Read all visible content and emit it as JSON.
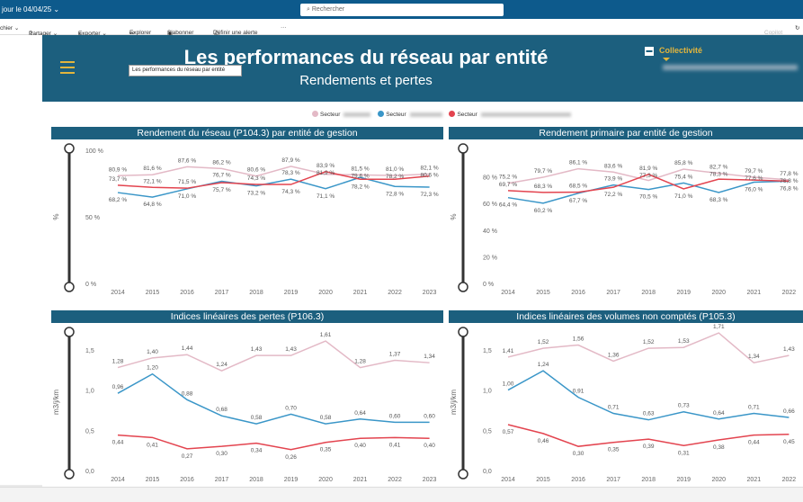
{
  "topbar": {
    "update_text": "jour le 04/04/25 ⌄",
    "search_placeholder": "Rechercher"
  },
  "toolbar": {
    "items": [
      "chier ⌄",
      "Partager ⌄",
      "Exporter ⌄",
      "Explorer",
      "S'abonner",
      "Définir une alerte",
      "···"
    ],
    "copilot": "Copilot"
  },
  "report": {
    "title": "Les performances du réseau par entité",
    "subtitle": "Rendements et pertes",
    "tooltip": "Les performances du réseau par entité",
    "collectivite_label": "Collectivité"
  },
  "legend": {
    "items": [
      {
        "label": "Secteur",
        "color": "#e3b9c6"
      },
      {
        "label": "Secteur",
        "color": "#3a96c8"
      },
      {
        "label": "Secteur",
        "color": "#e3444f"
      }
    ]
  },
  "chart_data": [
    {
      "type": "line",
      "title": "Rendement du réseau (P104.3) par entité de gestion",
      "ylabel": "%",
      "ylim": [
        0,
        100
      ],
      "yticks": [
        "0 %",
        "50 %",
        "100 %"
      ],
      "ytick_values": [
        0,
        50,
        100
      ],
      "categories": [
        "2014",
        "2015",
        "2016",
        "2017",
        "2018",
        "2019",
        "2020",
        "2021",
        "2022",
        "2023"
      ],
      "series": [
        {
          "name": "Secteur (rose)",
          "color": "#e3b9c6",
          "values": [
            80.9,
            81.6,
            87.6,
            86.2,
            80.6,
            87.9,
            81.9,
            81.5,
            81.0,
            82.1
          ],
          "labels": [
            "80,9 %",
            "81,6 %",
            "87,6 %",
            "86,2 %",
            "80,6 %",
            "87,9 %",
            "81,9 %",
            "81,5 %",
            "81,0 %",
            "82,1 %"
          ]
        },
        {
          "name": "Secteur (bleu)",
          "color": "#3a96c8",
          "values": [
            68.2,
            64.8,
            71.0,
            76.7,
            73.2,
            78.3,
            71.1,
            79.6,
            72.8,
            72.3
          ],
          "labels": [
            "68,2 %",
            "64,8 %",
            "71,0 %",
            "76,7 %",
            "73,2 %",
            "78,3 %",
            "71,1 %",
            "79,6 %",
            "72,8 %",
            "72,3 %"
          ]
        },
        {
          "name": "Secteur (rouge)",
          "color": "#e3444f",
          "values": [
            73.7,
            72.1,
            71.5,
            75.7,
            74.3,
            74.3,
            83.9,
            78.2,
            78.2,
            80.6
          ],
          "labels": [
            "73,7 %",
            "72,1 %",
            "71,5 %",
            "75,7 %",
            "74,3 %",
            "74,3 %",
            "83,9 %",
            "78,2 %",
            "78,2 %",
            "80,6 %"
          ]
        }
      ]
    },
    {
      "type": "line",
      "title": "Rendement primaire par entité de gestion",
      "ylabel": "%",
      "ylim": [
        0,
        100
      ],
      "yticks": [
        "0 %",
        "20 %",
        "40 %",
        "60 %",
        "80 %"
      ],
      "ytick_values": [
        0,
        20,
        40,
        60,
        80
      ],
      "categories": [
        "2014",
        "2015",
        "2016",
        "2017",
        "2018",
        "2019",
        "2020",
        "2021",
        "2022"
      ],
      "series": [
        {
          "name": "Secteur (rose)",
          "color": "#e3b9c6",
          "values": [
            75.2,
            79.7,
            86.1,
            83.6,
            77.3,
            85.8,
            82.7,
            79.7,
            77.8
          ],
          "labels": [
            "75,2 %",
            "79,7 %",
            "86,1 %",
            "83,6 %",
            "77,3 %",
            "85,8 %",
            "82,7 %",
            "79,7 %",
            "77,8 %"
          ]
        },
        {
          "name": "Secteur (bleu)",
          "color": "#3a96c8",
          "values": [
            64.4,
            60.2,
            67.7,
            73.9,
            70.5,
            75.4,
            68.3,
            76.0,
            76.8
          ],
          "labels": [
            "64,4 %",
            "60,2 %",
            "67,7 %",
            "73,9 %",
            "70,5 %",
            "75,4 %",
            "68,3 %",
            "76,0 %",
            "76,8 %"
          ]
        },
        {
          "name": "Secteur (rouge)",
          "color": "#e3444f",
          "values": [
            69.7,
            68.3,
            68.5,
            72.2,
            81.9,
            71.0,
            78.3,
            77.6,
            76.8
          ],
          "labels": [
            "69,7 %",
            "68,3 %",
            "68,5 %",
            "72,2 %",
            "81,9 %",
            "71,0 %",
            "78,3 %",
            "77,6 %",
            "76,8 %"
          ]
        }
      ]
    },
    {
      "type": "line",
      "title": "Indices linéaires des pertes (P106.3)",
      "ylabel": "m3/j/km",
      "ylim": [
        0,
        1.7
      ],
      "yticks": [
        "0,0",
        "0,5",
        "1,0",
        "1,5"
      ],
      "ytick_values": [
        0,
        0.5,
        1.0,
        1.5
      ],
      "categories": [
        "2014",
        "2015",
        "2016",
        "2017",
        "2018",
        "2019",
        "2020",
        "2021",
        "2022",
        "2023"
      ],
      "series": [
        {
          "name": "Secteur (rose)",
          "color": "#e3b9c6",
          "values": [
            1.28,
            1.4,
            1.44,
            1.24,
            1.43,
            1.43,
            1.61,
            1.28,
            1.37,
            1.34
          ],
          "labels": [
            "1,28",
            "1,40",
            "1,44",
            "1,24",
            "1,43",
            "1,43",
            "1,61",
            "1,28",
            "1,37",
            "1,34"
          ]
        },
        {
          "name": "Secteur (bleu)",
          "color": "#3a96c8",
          "values": [
            0.96,
            1.2,
            0.88,
            0.68,
            0.58,
            0.7,
            0.58,
            0.64,
            0.6,
            0.6
          ],
          "labels": [
            "0,96",
            "1,20",
            "0,88",
            "0,68",
            "0,58",
            "0,70",
            "0,58",
            "0,64",
            "0,60",
            "0,60"
          ]
        },
        {
          "name": "Secteur (rouge)",
          "color": "#e3444f",
          "values": [
            0.44,
            0.41,
            0.27,
            0.3,
            0.34,
            0.26,
            0.35,
            0.4,
            0.41,
            0.4
          ],
          "labels": [
            "0,44",
            "0,41",
            "0,27",
            "0,30",
            "0,34",
            "0,26",
            "0,35",
            "0,40",
            "0,41",
            "0,40"
          ]
        }
      ]
    },
    {
      "type": "line",
      "title": "Indices linéaires des volumes non comptés (P105.3)",
      "ylabel": "m3/j/km",
      "ylim": [
        0,
        1.7
      ],
      "yticks": [
        "0,0",
        "0,5",
        "1,0",
        "1,5"
      ],
      "ytick_values": [
        0,
        0.5,
        1.0,
        1.5
      ],
      "categories": [
        "2014",
        "2015",
        "2016",
        "2017",
        "2018",
        "2019",
        "2020",
        "2021",
        "2022"
      ],
      "series": [
        {
          "name": "Secteur (rose)",
          "color": "#e3b9c6",
          "values": [
            1.41,
            1.52,
            1.56,
            1.36,
            1.52,
            1.53,
            1.71,
            1.34,
            1.43
          ],
          "labels": [
            "1,41",
            "1,52",
            "1,56",
            "1,36",
            "1,52",
            "1,53",
            "1,71",
            "1,34",
            "1,43"
          ]
        },
        {
          "name": "Secteur (bleu)",
          "color": "#3a96c8",
          "values": [
            1.0,
            1.24,
            0.91,
            0.71,
            0.63,
            0.73,
            0.64,
            0.71,
            0.66
          ],
          "labels": [
            "1,00",
            "1,24",
            "0,91",
            "0,71",
            "0,63",
            "0,73",
            "0,64",
            "0,71",
            "0,66"
          ]
        },
        {
          "name": "Secteur (rouge)",
          "color": "#e3444f",
          "values": [
            0.57,
            0.46,
            0.3,
            0.35,
            0.39,
            0.31,
            0.38,
            0.44,
            0.45
          ],
          "labels": [
            "0,57",
            "0,46",
            "0,30",
            "0,35",
            "0,39",
            "0,31",
            "0,38",
            "0,44",
            "0,45"
          ]
        }
      ]
    }
  ]
}
